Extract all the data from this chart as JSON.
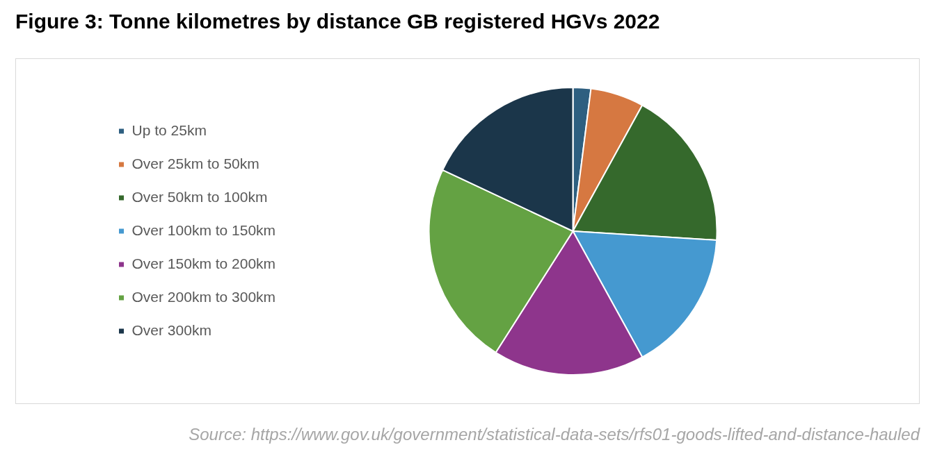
{
  "chart_data": {
    "type": "pie",
    "title": "Figure 3: Tonne kilometres by distance GB registered HGVs 2022",
    "categories": [
      "Up to 25km",
      "Over 25km to 50km",
      "Over 50km to 100km",
      "Over 100km to 150km",
      "Over 150km to 200km",
      "Over 200km to 300km",
      "Over 300km"
    ],
    "values": [
      2,
      6,
      18,
      16,
      17,
      23,
      18
    ],
    "colors": [
      "#2e5f80",
      "#d67841",
      "#35692c",
      "#4599d0",
      "#8e358c",
      "#64a243",
      "#1b364a"
    ],
    "legend": "left",
    "annotations": [
      "Source: https://www.gov.uk/government/statistical-data-sets/rfs01-goods-lifted-and-distance-hauled"
    ]
  }
}
